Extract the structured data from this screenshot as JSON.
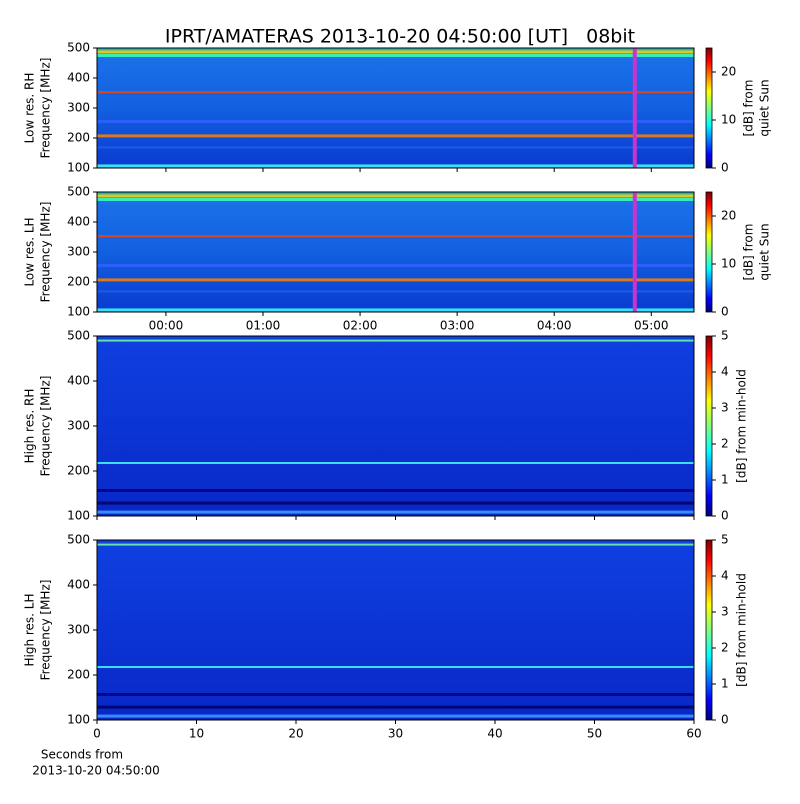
{
  "title": "IPRT/AMATERAS 2013-10-20 04:50:00 [UT]   08bit",
  "chart_data": [
    {
      "type": "heatmap",
      "ylabel": [
        "Low res. RH",
        "Frequency [MHz]"
      ],
      "ylim": [
        100,
        500
      ],
      "yticks": [
        100,
        200,
        300,
        400,
        500
      ],
      "xlim": [
        -0.71,
        5.44
      ],
      "xticks": [
        {
          "value": 0,
          "label": "00:00"
        },
        {
          "value": 1,
          "label": "01:00"
        },
        {
          "value": 2,
          "label": "02:00"
        },
        {
          "value": 3,
          "label": "03:00"
        },
        {
          "value": 4,
          "label": "04:00"
        },
        {
          "value": 5,
          "label": "05:00"
        }
      ],
      "show_xtick_labels": false,
      "marker": {
        "x": 4.83,
        "color": "#cc33cc"
      },
      "colorbar_label": [
        "[dB] from",
        "quiet Sun"
      ],
      "clim": [
        0,
        25
      ],
      "cticks": [
        0,
        10,
        20
      ]
    },
    {
      "type": "heatmap",
      "ylabel": [
        "Low res. LH",
        "Frequency [MHz]"
      ],
      "ylim": [
        100,
        500
      ],
      "yticks": [
        100,
        200,
        300,
        400,
        500
      ],
      "xlim": [
        -0.71,
        5.44
      ],
      "xticks": [
        {
          "value": 0,
          "label": "00:00"
        },
        {
          "value": 1,
          "label": "01:00"
        },
        {
          "value": 2,
          "label": "02:00"
        },
        {
          "value": 3,
          "label": "03:00"
        },
        {
          "value": 4,
          "label": "04:00"
        },
        {
          "value": 5,
          "label": "05:00"
        }
      ],
      "show_xtick_labels": true,
      "marker": {
        "x": 4.83,
        "color": "#cc33cc"
      },
      "colorbar_label": [
        "[dB] from",
        "quiet Sun"
      ],
      "clim": [
        0,
        25
      ],
      "cticks": [
        0,
        10,
        20
      ]
    },
    {
      "type": "heatmap",
      "ylabel": [
        "High res. RH",
        "Frequency [MHz]"
      ],
      "ylim": [
        100,
        500
      ],
      "yticks": [
        100,
        200,
        300,
        400,
        500
      ],
      "xlim": [
        0,
        60
      ],
      "xticks": [
        0,
        10,
        20,
        30,
        40,
        50,
        60
      ],
      "show_xtick_labels": false,
      "colorbar_label": [
        "[dB] from min-hold"
      ],
      "clim": [
        0,
        5
      ],
      "cticks": [
        0,
        1,
        2,
        3,
        4,
        5
      ]
    },
    {
      "type": "heatmap",
      "ylabel": [
        "High res. LH",
        "Frequency [MHz]"
      ],
      "ylim": [
        100,
        500
      ],
      "yticks": [
        100,
        200,
        300,
        400,
        500
      ],
      "xlim": [
        0,
        60
      ],
      "xticks": [
        0,
        10,
        20,
        30,
        40,
        50,
        60
      ],
      "show_xtick_labels": true,
      "xlabel": [
        "Seconds from",
        "2013-10-20 04:50:00"
      ],
      "colorbar_label": [
        "[dB] from min-hold"
      ],
      "clim": [
        0,
        5
      ],
      "cticks": [
        0,
        1,
        2,
        3,
        4,
        5
      ]
    }
  ]
}
